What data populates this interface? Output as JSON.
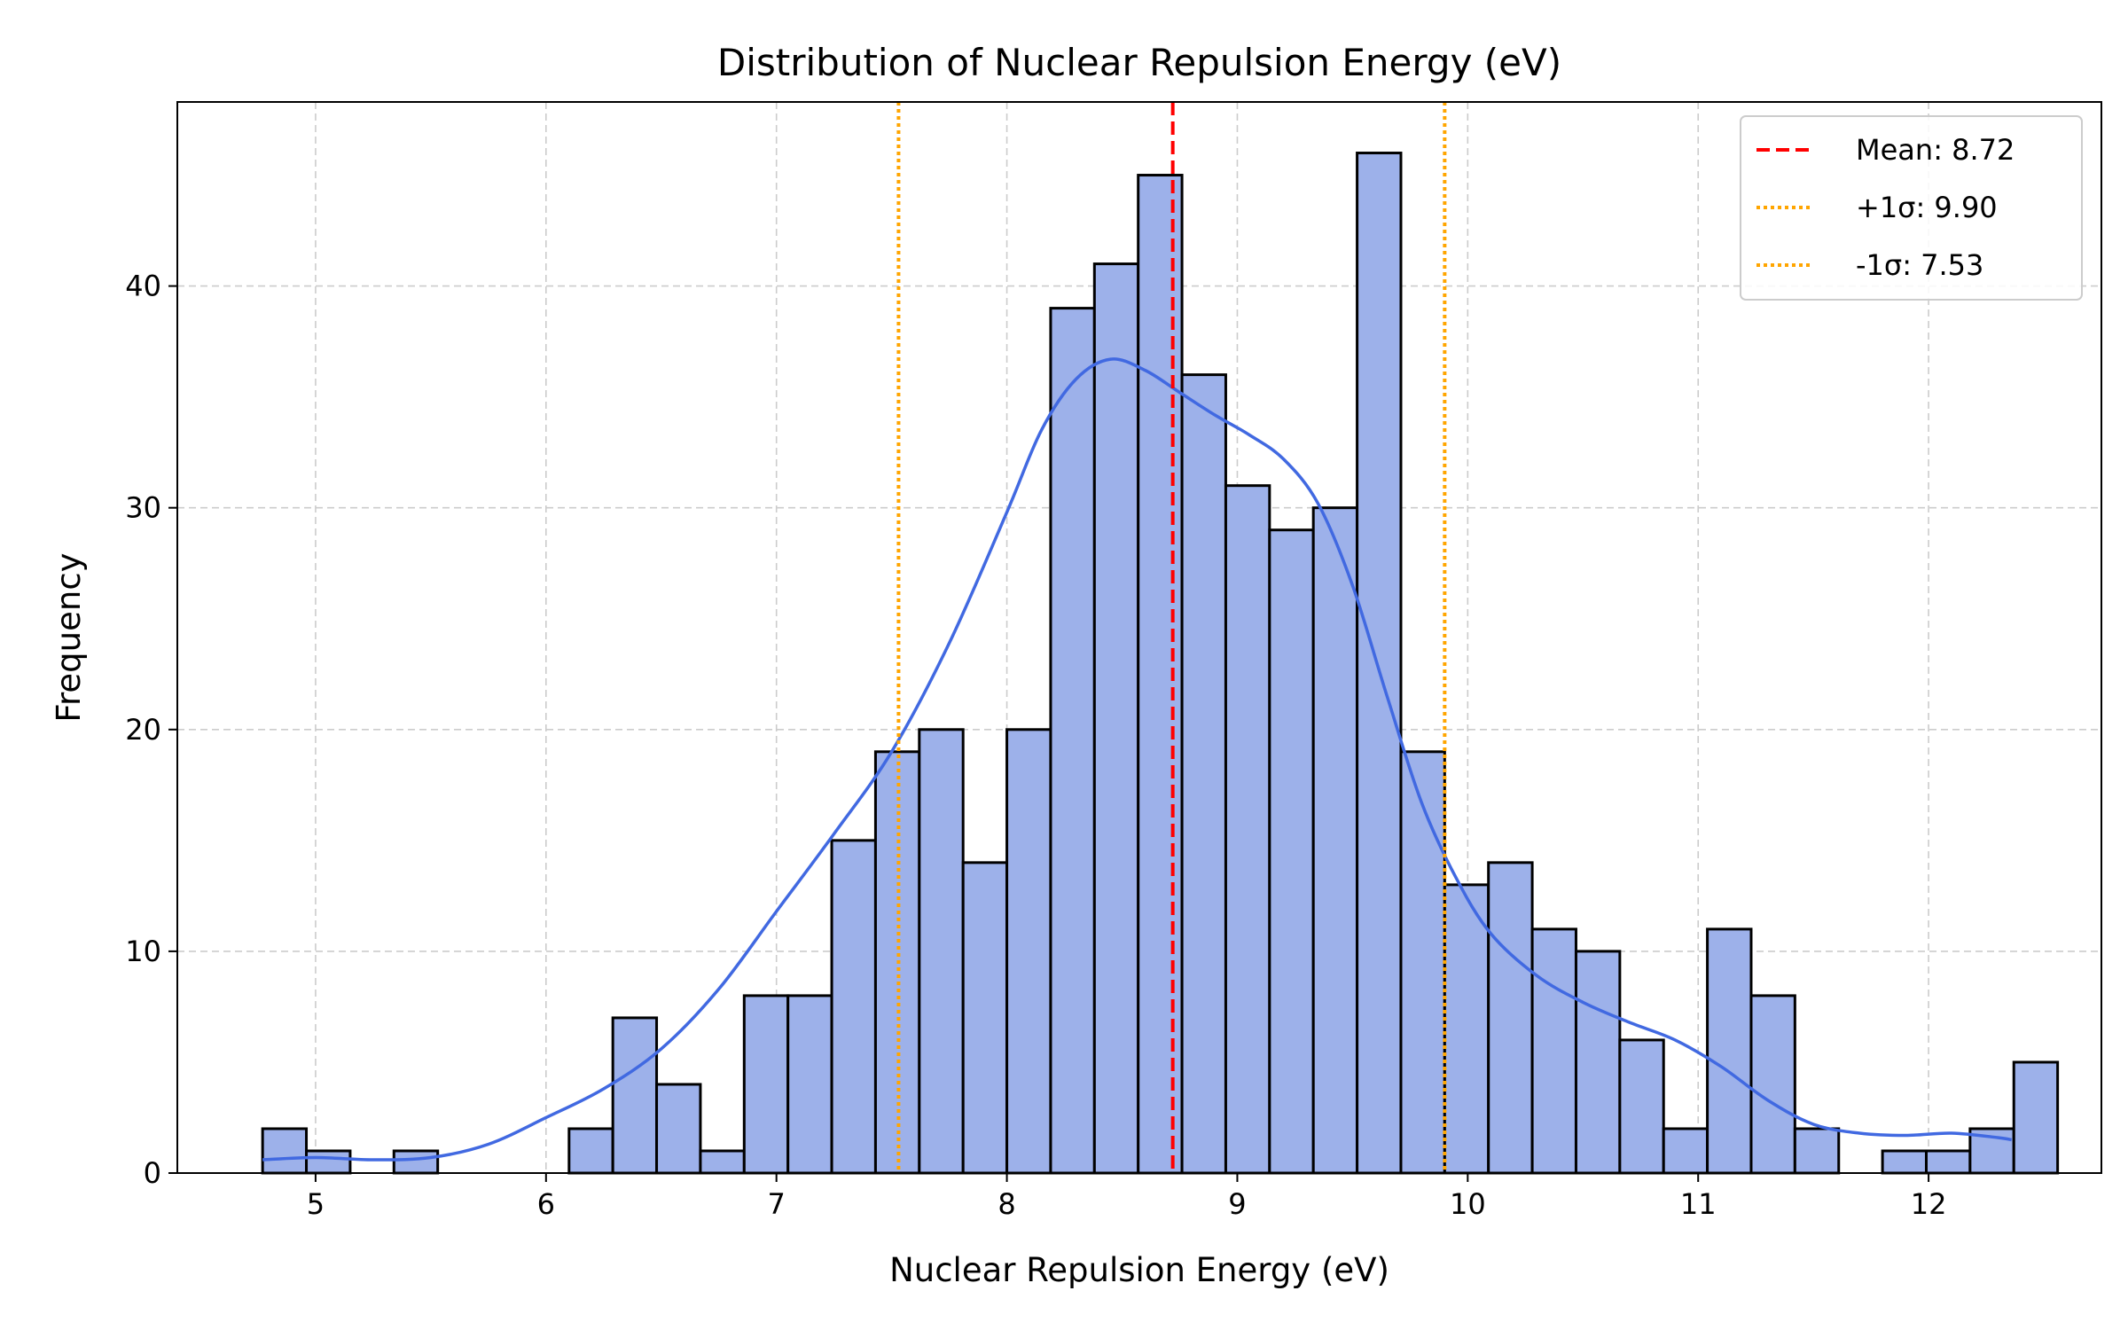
{
  "chart_data": {
    "type": "bar",
    "title": "Distribution of Nuclear Repulsion Energy (eV)",
    "xlabel": "Nuclear Repulsion Energy (eV)",
    "ylabel": "Frequency",
    "xlim": [
      4.4,
      12.75
    ],
    "ylim": [
      0,
      48.3
    ],
    "x_ticks": [
      5,
      6,
      7,
      8,
      9,
      10,
      11,
      12
    ],
    "y_ticks": [
      0,
      10,
      20,
      30,
      40
    ],
    "grid": true,
    "bar_color": "#9db1ea",
    "bar_edge_color": "#000000",
    "kde_color": "#4169e1",
    "bins": {
      "start": 4.77,
      "width": 0.19,
      "counts": [
        2,
        1,
        0,
        1,
        0,
        0,
        0,
        2,
        7,
        4,
        1,
        8,
        8,
        15,
        19,
        20,
        14,
        20,
        39,
        41,
        45,
        36,
        31,
        29,
        30,
        46,
        19,
        13,
        14,
        11,
        10,
        6,
        2,
        11,
        8,
        2,
        0,
        1,
        1,
        2,
        5
      ]
    },
    "kde": {
      "x": [
        4.77,
        5.0,
        5.25,
        5.5,
        5.75,
        6.0,
        6.25,
        6.5,
        6.75,
        7.0,
        7.25,
        7.5,
        7.75,
        8.0,
        8.15,
        8.3,
        8.45,
        8.6,
        8.75,
        8.9,
        9.05,
        9.2,
        9.35,
        9.5,
        9.65,
        9.8,
        9.95,
        10.1,
        10.3,
        10.5,
        10.7,
        10.9,
        11.1,
        11.3,
        11.5,
        11.7,
        11.9,
        12.1,
        12.3,
        12.36
      ],
      "y": [
        0.6,
        0.7,
        0.6,
        0.7,
        1.3,
        2.5,
        3.8,
        5.6,
        8.3,
        11.8,
        15.3,
        19.0,
        23.9,
        29.8,
        33.5,
        35.8,
        36.7,
        36.2,
        35.2,
        34.2,
        33.3,
        32.2,
        30.2,
        26.5,
        21.5,
        16.7,
        13.3,
        10.8,
        8.9,
        7.7,
        6.8,
        6.0,
        4.8,
        3.3,
        2.2,
        1.8,
        1.7,
        1.8,
        1.6,
        1.5
      ]
    },
    "vlines": [
      {
        "label": "Mean: 8.72",
        "x": 8.72,
        "color": "#ff0000",
        "style": "dashed"
      },
      {
        "label": "+1σ: 9.90",
        "x": 9.9,
        "color": "#ffa500",
        "style": "dotted"
      },
      {
        "label": "-1σ: 7.53",
        "x": 7.53,
        "color": "#ffa500",
        "style": "dotted"
      }
    ],
    "legend_position": "top-right"
  }
}
